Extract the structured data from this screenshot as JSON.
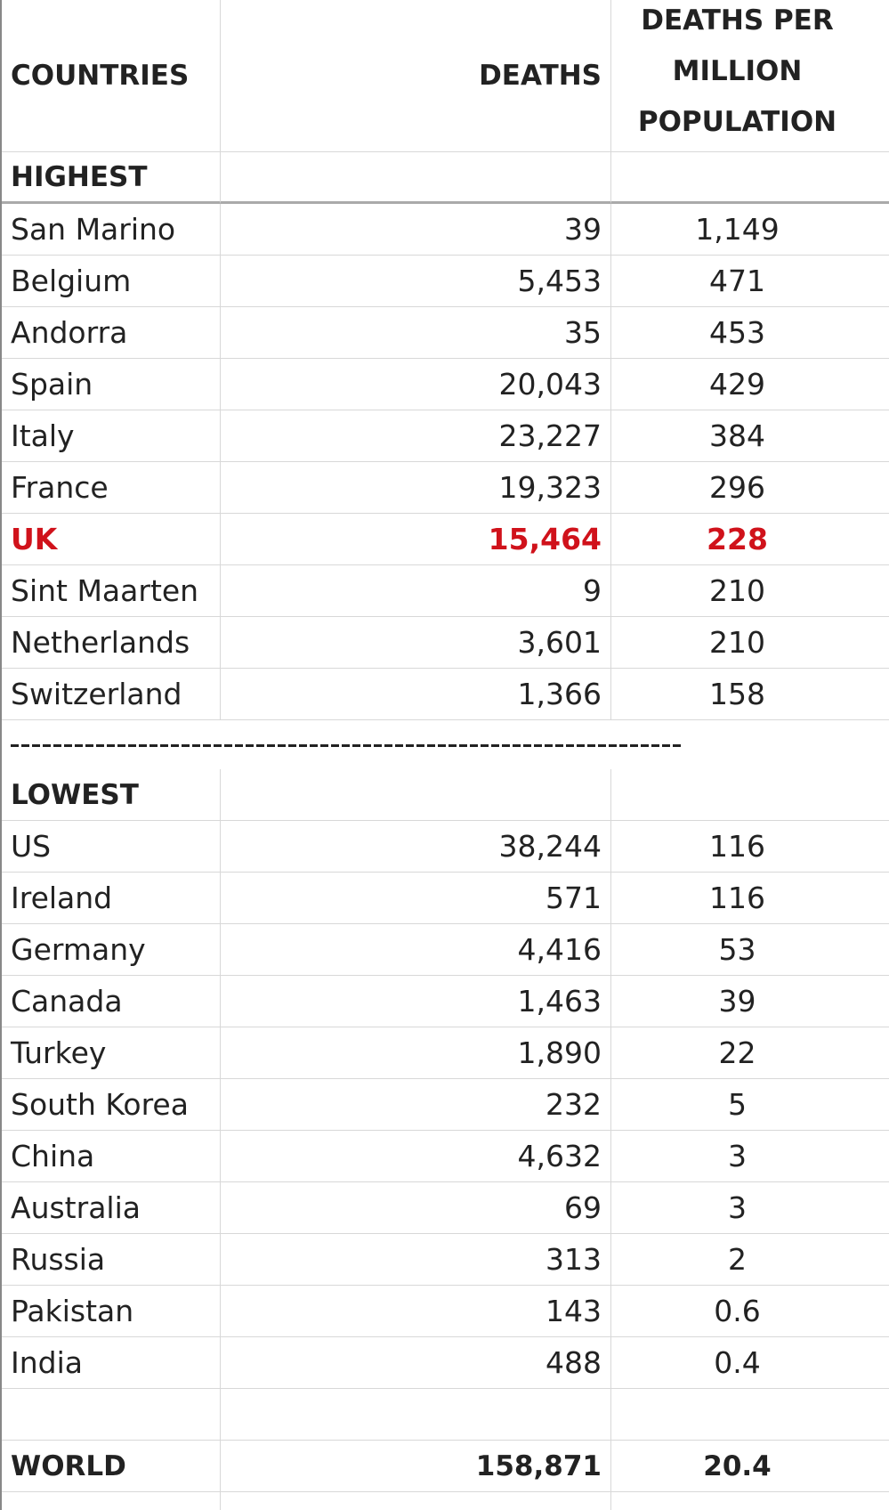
{
  "table": {
    "header": [
      "COUNTRIES",
      "DEATHS",
      "DEATHS PER MILLION POPULATION"
    ],
    "highest": {
      "label": "HIGHEST",
      "rows": [
        [
          "San Marino",
          "39",
          "1,149"
        ],
        [
          "Belgium",
          "5,453",
          "471"
        ],
        [
          "Andorra",
          "35",
          "453"
        ],
        [
          "Spain",
          "20,043",
          "429"
        ],
        [
          "Italy",
          "23,227",
          "384"
        ],
        [
          "France",
          "19,323",
          "296"
        ],
        [
          "UK",
          "15,464",
          "228"
        ],
        [
          "Sint Maarten",
          "9",
          "210"
        ],
        [
          "Netherlands",
          "3,601",
          "210"
        ],
        [
          "Switzerland",
          "1,366",
          "158"
        ]
      ]
    },
    "lowest": {
      "label": "LOWEST",
      "rows": [
        [
          "US",
          "38,244",
          "116"
        ],
        [
          "Ireland",
          "571",
          "116"
        ],
        [
          "Germany",
          "4,416",
          "53"
        ],
        [
          "Canada",
          "1,463",
          "39"
        ],
        [
          "Turkey",
          "1,890",
          "22"
        ],
        [
          "South Korea",
          "232",
          "5"
        ],
        [
          "China",
          "4,632",
          "3"
        ],
        [
          "Australia",
          "69",
          "3"
        ],
        [
          "Russia",
          "313",
          "2"
        ],
        [
          "Pakistan",
          "143",
          "0.6"
        ],
        [
          "India",
          "488",
          "0.4"
        ]
      ]
    },
    "world": [
      "WORLD",
      "158,871",
      "20.4"
    ]
  }
}
